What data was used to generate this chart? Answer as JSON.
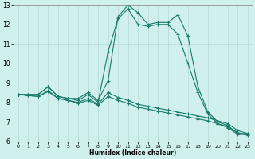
{
  "xlabel": "Humidex (Indice chaleur)",
  "bg_color": "#cff0ec",
  "plot_bg_color": "#cff0ec",
  "grid_color": "#b8d8d4",
  "line_color": "#1a7a6a",
  "xlim": [
    -0.5,
    23.5
  ],
  "ylim": [
    6,
    13
  ],
  "xticks": [
    0,
    1,
    2,
    3,
    4,
    5,
    6,
    7,
    8,
    9,
    10,
    11,
    12,
    13,
    14,
    15,
    16,
    17,
    18,
    19,
    20,
    21,
    22,
    23
  ],
  "yticks": [
    6,
    7,
    8,
    9,
    10,
    11,
    12,
    13
  ],
  "line1_x": [
    0,
    1,
    2,
    3,
    4,
    5,
    6,
    7,
    8,
    9,
    10,
    11,
    12,
    13,
    14,
    15,
    16,
    17,
    18,
    19,
    20,
    21,
    22,
    23
  ],
  "line1_y": [
    8.4,
    8.4,
    8.4,
    8.8,
    8.3,
    8.2,
    8.2,
    8.5,
    8.1,
    9.1,
    12.4,
    13.0,
    12.6,
    12.0,
    12.1,
    12.1,
    12.5,
    11.4,
    8.8,
    7.5,
    7.0,
    6.8,
    6.4,
    6.4
  ],
  "line2_x": [
    0,
    1,
    2,
    3,
    4,
    5,
    6,
    7,
    8,
    9,
    10,
    11,
    12,
    13,
    14,
    15,
    16,
    17,
    18,
    19,
    20,
    21,
    22,
    23
  ],
  "line2_y": [
    8.4,
    8.4,
    8.4,
    8.8,
    8.3,
    8.2,
    8.1,
    8.4,
    8.0,
    10.6,
    12.3,
    12.8,
    12.0,
    11.9,
    12.0,
    12.0,
    11.5,
    10.0,
    8.5,
    7.4,
    6.9,
    6.7,
    6.35,
    6.35
  ],
  "line3_x": [
    0,
    1,
    2,
    3,
    4,
    5,
    6,
    7,
    8,
    9,
    10,
    11,
    12,
    13,
    14,
    15,
    16,
    17,
    18,
    19,
    20,
    21,
    22,
    23
  ],
  "line3_y": [
    8.4,
    8.35,
    8.3,
    8.6,
    8.2,
    8.1,
    8.0,
    8.2,
    7.9,
    8.5,
    8.25,
    8.1,
    7.9,
    7.8,
    7.7,
    7.6,
    7.5,
    7.4,
    7.3,
    7.2,
    7.05,
    6.9,
    6.55,
    6.4
  ],
  "line4_x": [
    0,
    1,
    2,
    3,
    4,
    5,
    6,
    7,
    8,
    9,
    10,
    11,
    12,
    13,
    14,
    15,
    16,
    17,
    18,
    19,
    20,
    21,
    22,
    23
  ],
  "line4_y": [
    8.4,
    8.35,
    8.3,
    8.55,
    8.2,
    8.1,
    7.95,
    8.1,
    7.85,
    8.3,
    8.1,
    7.95,
    7.75,
    7.65,
    7.55,
    7.45,
    7.35,
    7.25,
    7.15,
    7.05,
    6.9,
    6.75,
    6.45,
    6.3
  ]
}
